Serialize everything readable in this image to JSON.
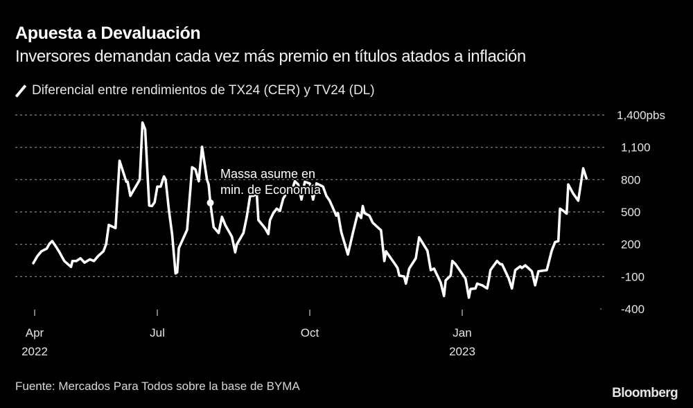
{
  "header": {
    "title": "Apuesta a Devaluación",
    "subtitle": "Inversores demandan cada vez más premio en títulos atados a inflación"
  },
  "footer": {
    "source": "Fuente: Mercados Para Todos sobre la base de BYMA",
    "brand": "Bloomberg"
  },
  "colors": {
    "background": "#000000",
    "line": "#ffffff",
    "grid": "#8c8c8c",
    "text": "#e6e6e6"
  },
  "chart_data": {
    "type": "line",
    "title": "Apuesta a Devaluación",
    "subtitle": "Inversores demandan cada vez más premio en títulos atados a inflación",
    "xlabel": "",
    "ylabel": "pbs",
    "ylim": [
      -400,
      1400
    ],
    "y_ticks": [
      1400,
      1100,
      800,
      500,
      200,
      -100,
      -400
    ],
    "y_tick_labels": [
      "1,400pbs",
      "1,100",
      "800",
      "500",
      "200",
      "-100",
      "-400"
    ],
    "x_ticks": [
      {
        "date": "2022-04-01",
        "label": "Apr",
        "sublabel": "2022"
      },
      {
        "date": "2022-07-01",
        "label": "Jul",
        "sublabel": ""
      },
      {
        "date": "2022-10-01",
        "label": "Oct",
        "sublabel": ""
      },
      {
        "date": "2023-01-01",
        "label": "Jan",
        "sublabel": "2023"
      }
    ],
    "grid": true,
    "legend": {
      "position": "top-left",
      "entries": [
        "Diferencial entre rendimientos de TX24 (CER) y TV24 (DL)"
      ]
    },
    "annotations": [
      {
        "date": "2022-08-02",
        "value": 585,
        "text_lines": [
          "Massa asume en",
          "min. de Economía"
        ]
      }
    ],
    "series": [
      {
        "name": "Diferencial entre rendimientos de TX24 (CER) y TV24 (DL)",
        "points": [
          [
            "2022-03-31",
            25
          ],
          [
            "2022-04-03",
            90
          ],
          [
            "2022-04-06",
            135
          ],
          [
            "2022-04-10",
            160
          ],
          [
            "2022-04-12",
            205
          ],
          [
            "2022-04-14",
            230
          ],
          [
            "2022-04-17",
            175
          ],
          [
            "2022-04-19",
            135
          ],
          [
            "2022-04-23",
            45
          ],
          [
            "2022-04-28",
            -10
          ],
          [
            "2022-04-29",
            45
          ],
          [
            "2022-05-02",
            45
          ],
          [
            "2022-05-05",
            70
          ],
          [
            "2022-05-08",
            30
          ],
          [
            "2022-05-12",
            60
          ],
          [
            "2022-05-15",
            45
          ],
          [
            "2022-05-18",
            90
          ],
          [
            "2022-05-22",
            135
          ],
          [
            "2022-05-24",
            200
          ],
          [
            "2022-05-26",
            380
          ],
          [
            "2022-05-31",
            350
          ],
          [
            "2022-06-03",
            975
          ],
          [
            "2022-06-08",
            780
          ],
          [
            "2022-06-09",
            780
          ],
          [
            "2022-06-11",
            650
          ],
          [
            "2022-06-18",
            800
          ],
          [
            "2022-06-20",
            1330
          ],
          [
            "2022-06-22",
            1265
          ],
          [
            "2022-06-25",
            560
          ],
          [
            "2022-06-27",
            555
          ],
          [
            "2022-06-29",
            590
          ],
          [
            "2022-07-01",
            735
          ],
          [
            "2022-07-03",
            735
          ],
          [
            "2022-07-05",
            830
          ],
          [
            "2022-07-06",
            800
          ],
          [
            "2022-07-08",
            520
          ],
          [
            "2022-07-10",
            285
          ],
          [
            "2022-07-12",
            -70
          ],
          [
            "2022-07-13",
            -60
          ],
          [
            "2022-07-14",
            165
          ],
          [
            "2022-07-19",
            335
          ],
          [
            "2022-07-22",
            915
          ],
          [
            "2022-07-24",
            895
          ],
          [
            "2022-07-26",
            785
          ],
          [
            "2022-07-28",
            1105
          ],
          [
            "2022-07-31",
            800
          ],
          [
            "2022-08-01",
            755
          ],
          [
            "2022-08-02",
            585
          ],
          [
            "2022-08-04",
            360
          ],
          [
            "2022-08-07",
            305
          ],
          [
            "2022-08-09",
            455
          ],
          [
            "2022-08-11",
            380
          ],
          [
            "2022-08-15",
            270
          ],
          [
            "2022-08-17",
            125
          ],
          [
            "2022-08-18",
            200
          ],
          [
            "2022-08-22",
            305
          ],
          [
            "2022-08-24",
            455
          ],
          [
            "2022-08-26",
            650
          ],
          [
            "2022-08-28",
            650
          ],
          [
            "2022-08-30",
            670
          ],
          [
            "2022-08-31",
            425
          ],
          [
            "2022-09-04",
            350
          ],
          [
            "2022-09-06",
            295
          ],
          [
            "2022-09-07",
            425
          ],
          [
            "2022-09-09",
            490
          ],
          [
            "2022-09-11",
            530
          ],
          [
            "2022-09-13",
            510
          ],
          [
            "2022-09-15",
            625
          ],
          [
            "2022-09-19",
            725
          ],
          [
            "2022-09-20",
            690
          ],
          [
            "2022-09-22",
            785
          ],
          [
            "2022-09-24",
            755
          ],
          [
            "2022-09-26",
            615
          ],
          [
            "2022-09-28",
            780
          ],
          [
            "2022-10-01",
            765
          ],
          [
            "2022-10-03",
            615
          ],
          [
            "2022-10-05",
            765
          ],
          [
            "2022-10-09",
            735
          ],
          [
            "2022-10-11",
            650
          ],
          [
            "2022-10-13",
            605
          ],
          [
            "2022-10-17",
            465
          ],
          [
            "2022-10-18",
            490
          ],
          [
            "2022-10-20",
            315
          ],
          [
            "2022-10-24",
            105
          ],
          [
            "2022-10-27",
            305
          ],
          [
            "2022-10-30",
            490
          ],
          [
            "2022-11-01",
            445
          ],
          [
            "2022-11-02",
            555
          ],
          [
            "2022-11-03",
            490
          ],
          [
            "2022-11-06",
            465
          ],
          [
            "2022-11-08",
            400
          ],
          [
            "2022-11-13",
            330
          ],
          [
            "2022-11-15",
            45
          ],
          [
            "2022-11-16",
            135
          ],
          [
            "2022-11-21",
            25
          ],
          [
            "2022-11-23",
            -20
          ],
          [
            "2022-11-24",
            -90
          ],
          [
            "2022-11-27",
            -100
          ],
          [
            "2022-11-28",
            -165
          ],
          [
            "2022-11-30",
            -25
          ],
          [
            "2022-12-04",
            70
          ],
          [
            "2022-12-06",
            265
          ],
          [
            "2022-12-11",
            140
          ],
          [
            "2022-12-13",
            -40
          ],
          [
            "2022-12-15",
            -25
          ],
          [
            "2022-12-19",
            -155
          ],
          [
            "2022-12-21",
            -280
          ],
          [
            "2022-12-22",
            -135
          ],
          [
            "2022-12-25",
            -90
          ],
          [
            "2022-12-26",
            45
          ],
          [
            "2022-12-28",
            15
          ],
          [
            "2023-01-03",
            -120
          ],
          [
            "2023-01-05",
            -295
          ],
          [
            "2023-01-06",
            -215
          ],
          [
            "2023-01-09",
            -210
          ],
          [
            "2023-01-10",
            -165
          ],
          [
            "2023-01-13",
            -180
          ],
          [
            "2023-01-16",
            -210
          ],
          [
            "2023-01-17",
            -135
          ],
          [
            "2023-01-18",
            -40
          ],
          [
            "2023-01-22",
            45
          ],
          [
            "2023-01-24",
            15
          ],
          [
            "2023-01-25",
            15
          ],
          [
            "2023-01-29",
            -115
          ],
          [
            "2023-01-31",
            -210
          ],
          [
            "2023-02-02",
            -40
          ],
          [
            "2023-02-05",
            -5
          ],
          [
            "2023-02-06",
            -20
          ],
          [
            "2023-02-08",
            5
          ],
          [
            "2023-02-12",
            -50
          ],
          [
            "2023-02-14",
            -180
          ],
          [
            "2023-02-16",
            -50
          ],
          [
            "2023-02-21",
            -40
          ],
          [
            "2023-02-24",
            140
          ],
          [
            "2023-02-26",
            220
          ],
          [
            "2023-02-28",
            230
          ],
          [
            "2023-03-01",
            530
          ],
          [
            "2023-03-03",
            510
          ],
          [
            "2023-03-05",
            485
          ],
          [
            "2023-03-06",
            755
          ],
          [
            "2023-03-09",
            670
          ],
          [
            "2023-03-12",
            605
          ],
          [
            "2023-03-15",
            905
          ],
          [
            "2023-03-17",
            810
          ]
        ]
      }
    ]
  }
}
